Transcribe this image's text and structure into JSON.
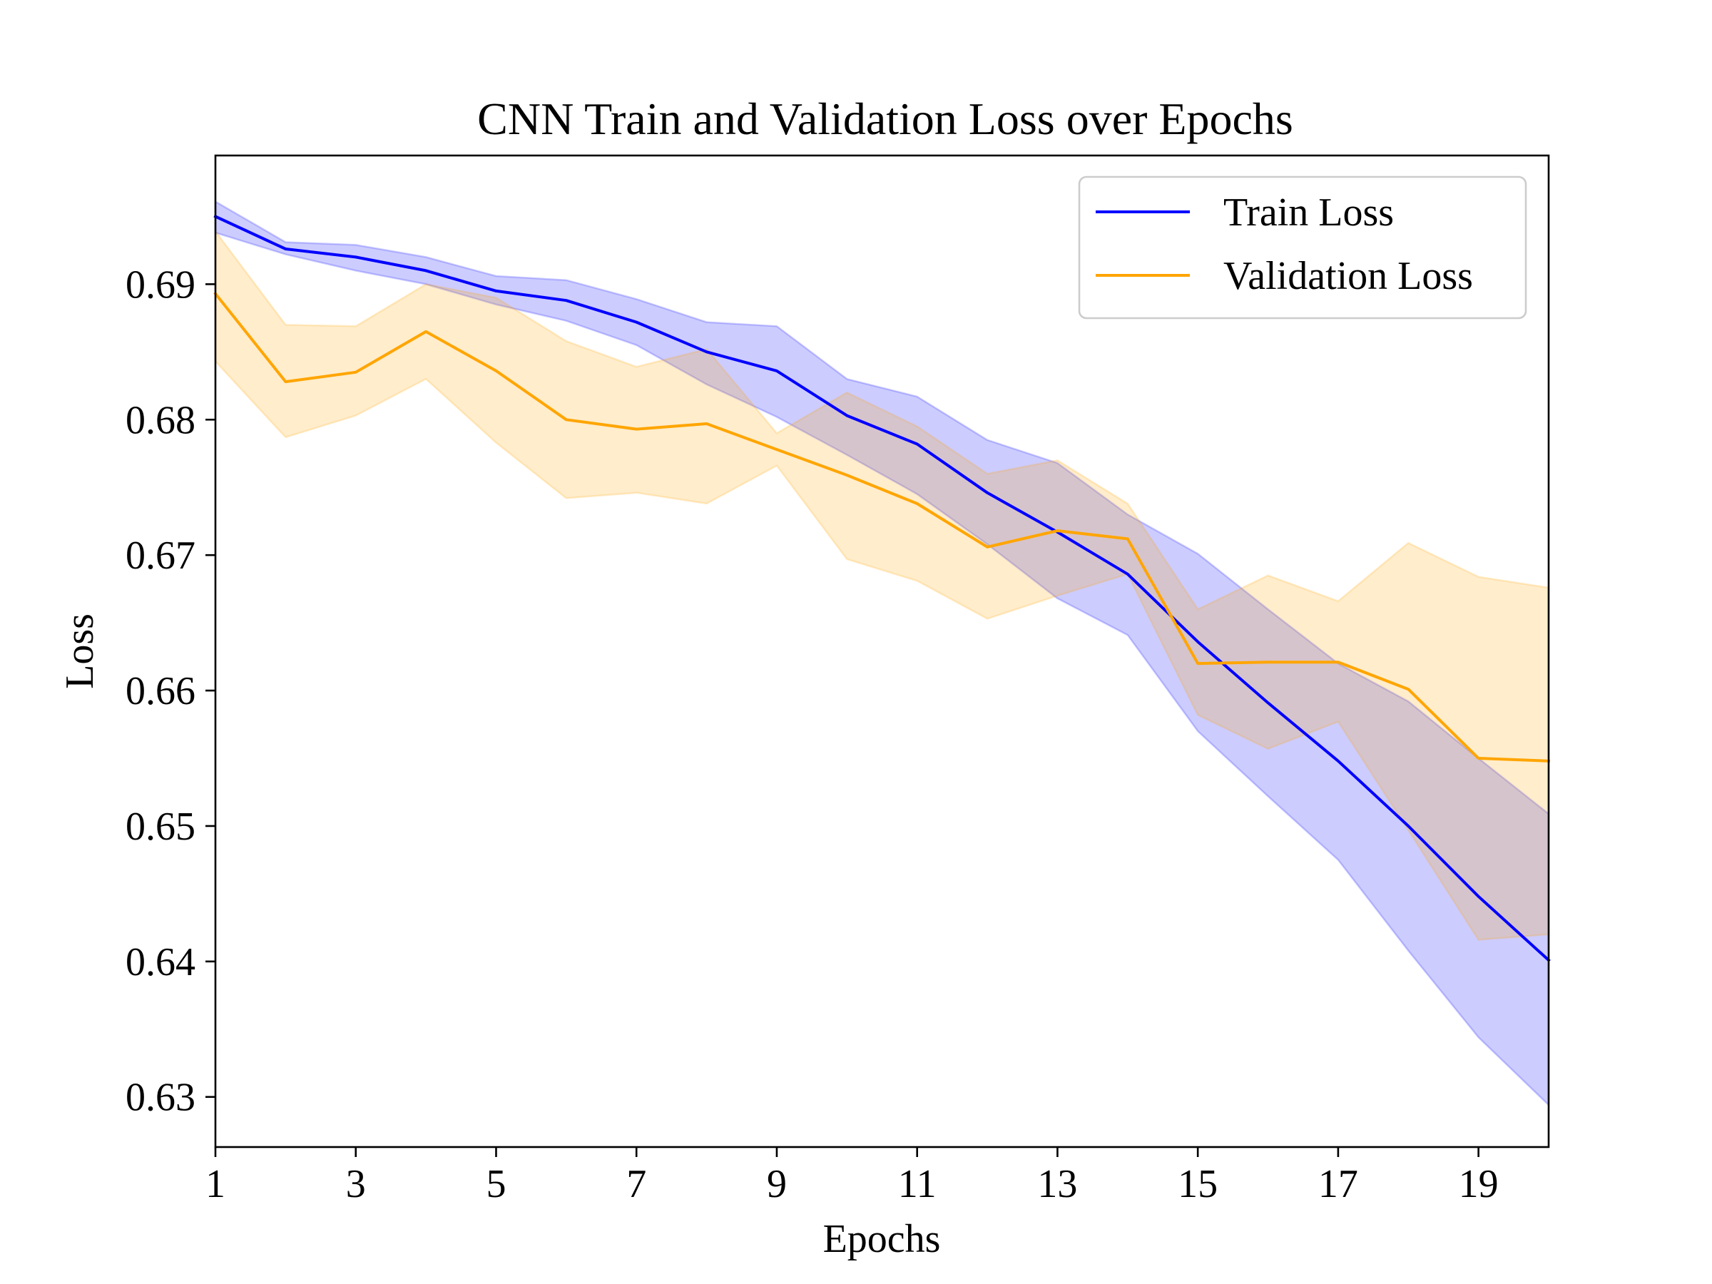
{
  "chart_data": {
    "type": "line",
    "title": "CNN Train and Validation Loss over Epochs",
    "xlabel": "Epochs",
    "ylabel": "Loss",
    "xlim": [
      1,
      20
    ],
    "ylim": [
      0.6263,
      0.6995
    ],
    "x_ticks": [
      1,
      3,
      5,
      7,
      9,
      11,
      13,
      15,
      17,
      19
    ],
    "x_tick_labels": [
      "1",
      "3",
      "5",
      "7",
      "9",
      "11",
      "13",
      "15",
      "17",
      "19"
    ],
    "y_ticks": [
      0.63,
      0.64,
      0.65,
      0.66,
      0.67,
      0.68,
      0.69
    ],
    "y_tick_labels": [
      "0.63",
      "0.64",
      "0.65",
      "0.66",
      "0.67",
      "0.68",
      "0.69"
    ],
    "grid": false,
    "legend_position": "top-right",
    "x": [
      1,
      2,
      3,
      4,
      5,
      6,
      7,
      8,
      9,
      10,
      11,
      12,
      13,
      14,
      15,
      16,
      17,
      18,
      19,
      20
    ],
    "series": [
      {
        "name": "Train Loss",
        "color": "#0000ff",
        "band_color": "#0000ff",
        "values": [
          0.695,
          0.6926,
          0.692,
          0.691,
          0.6895,
          0.6888,
          0.6872,
          0.685,
          0.6836,
          0.6803,
          0.6782,
          0.6746,
          0.6717,
          0.6686,
          0.6636,
          0.6591,
          0.6548,
          0.65,
          0.6448,
          0.6401
        ],
        "lower": [
          0.6938,
          0.6922,
          0.691,
          0.69,
          0.6885,
          0.6873,
          0.6855,
          0.6826,
          0.6802,
          0.6774,
          0.6745,
          0.6708,
          0.6668,
          0.6641,
          0.657,
          0.6522,
          0.6475,
          0.6408,
          0.6344,
          0.6294
        ],
        "upper": [
          0.6961,
          0.6931,
          0.6929,
          0.692,
          0.6906,
          0.6903,
          0.6889,
          0.6872,
          0.6869,
          0.683,
          0.6817,
          0.6785,
          0.6768,
          0.673,
          0.6701,
          0.666,
          0.662,
          0.6592,
          0.655,
          0.6509
        ]
      },
      {
        "name": "Validation Loss",
        "color": "#ffa500",
        "band_color": "#ffa500",
        "values": [
          0.6893,
          0.6828,
          0.6835,
          0.6865,
          0.6836,
          0.68,
          0.6793,
          0.6797,
          0.6778,
          0.6759,
          0.6738,
          0.6706,
          0.6718,
          0.6712,
          0.662,
          0.6621,
          0.6621,
          0.6601,
          0.655,
          0.6548
        ],
        "lower": [
          0.6843,
          0.6787,
          0.6803,
          0.683,
          0.6783,
          0.6742,
          0.6746,
          0.6738,
          0.6766,
          0.6697,
          0.6681,
          0.6653,
          0.667,
          0.6686,
          0.6582,
          0.6557,
          0.6577,
          0.6497,
          0.6416,
          0.642
        ],
        "upper": [
          0.6939,
          0.687,
          0.6869,
          0.69,
          0.689,
          0.6858,
          0.6839,
          0.6852,
          0.679,
          0.682,
          0.6795,
          0.676,
          0.677,
          0.6738,
          0.666,
          0.6685,
          0.6666,
          0.6709,
          0.6684,
          0.6676
        ]
      }
    ]
  }
}
